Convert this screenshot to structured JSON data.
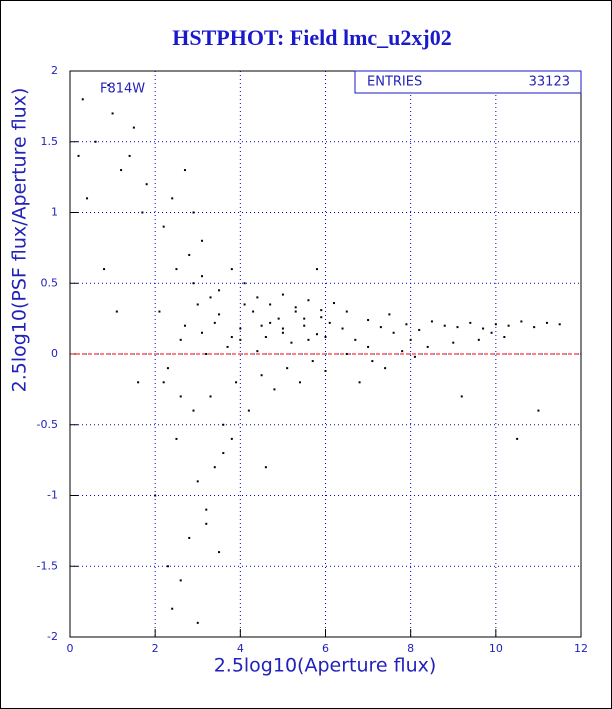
{
  "chart_data": {
    "type": "scatter",
    "title": "HSTPHOT: Field lmc_u2xj02",
    "x_label": "2.5log10(Aperture flux)",
    "y_label": "2.5log10(PSF flux/Aperture flux)",
    "annotation": "F814W",
    "stats": {
      "label": "ENTRIES",
      "value": 33123
    },
    "color": "#000000",
    "grid": true,
    "grid_color": "#0000cc",
    "reference_line": {
      "y": 0,
      "color": "#ff0000"
    },
    "xlim": [
      0,
      12
    ],
    "ylim": [
      -2,
      2
    ],
    "xticks": [
      0,
      2,
      4,
      6,
      8,
      10,
      12
    ],
    "yticks": [
      -2,
      -1.5,
      -1,
      -0.5,
      0,
      0.5,
      1,
      1.5,
      2
    ],
    "x": [
      3.1,
      3.4,
      3.7,
      4.0,
      4.3,
      4.6,
      4.9,
      5.2,
      5.5,
      5.8,
      6.1,
      6.4,
      6.7,
      7.0,
      7.3,
      7.6,
      7.9,
      8.2,
      8.5,
      8.8,
      9.1,
      9.4,
      9.7,
      10.0,
      10.3,
      10.6,
      10.9,
      11.2,
      11.5,
      9.9,
      2.2,
      2.5,
      2.8,
      3.0,
      2.4,
      2.6,
      3.2,
      2.9,
      2.3,
      2.7,
      0.3,
      0.6,
      0.9,
      1.2,
      1.5,
      1.8,
      0.4,
      1.0,
      1.4,
      1.7,
      3.3,
      3.6,
      3.9,
      4.2,
      4.5,
      4.8,
      5.1,
      5.4,
      5.7,
      6.0,
      3.5,
      3.8,
      4.1,
      4.4,
      4.7,
      5.0,
      5.3,
      5.6,
      5.9,
      6.2,
      2.6,
      3.0,
      3.4,
      2.8,
      3.2,
      3.6,
      2.4,
      3.8,
      3.1,
      2.9,
      6.5,
      7.1,
      7.8,
      8.4,
      9.0,
      9.6,
      10.2,
      6.8,
      7.4,
      8.1,
      4.0,
      4.5,
      5.0,
      5.5,
      6.0,
      6.5,
      7.0,
      7.5,
      8.0,
      11.0,
      3.2,
      3.5,
      3.8,
      4.1,
      4.4,
      4.7,
      5.0,
      5.3,
      5.6,
      5.9,
      2.1,
      2.3,
      2.5,
      2.7,
      2.9,
      3.1,
      3.3,
      2.2,
      2.6,
      3.0,
      0.8,
      1.1,
      1.6,
      2.0,
      3.5,
      4.6,
      5.8,
      9.2,
      10.5,
      0.2
    ],
    "values": [
      0.15,
      0.22,
      0.05,
      0.18,
      0.3,
      0.12,
      0.25,
      0.08,
      0.2,
      0.14,
      0.22,
      0.18,
      0.1,
      0.24,
      0.19,
      0.15,
      0.21,
      0.17,
      0.23,
      0.2,
      0.19,
      0.22,
      0.18,
      0.21,
      0.2,
      0.23,
      0.19,
      0.22,
      0.21,
      0.15,
      0.9,
      -0.6,
      0.7,
      -0.9,
      1.1,
      -0.3,
      -1.2,
      0.5,
      -1.5,
      1.3,
      1.8,
      1.5,
      1.9,
      1.3,
      1.6,
      1.2,
      1.1,
      1.7,
      1.4,
      1.0,
      -0.3,
      -0.5,
      -0.2,
      -0.4,
      -0.15,
      -0.25,
      -0.1,
      -0.2,
      -0.05,
      -0.12,
      0.45,
      0.6,
      0.5,
      0.4,
      0.35,
      0.42,
      0.33,
      0.38,
      0.31,
      0.36,
      -1.6,
      -1.9,
      -0.8,
      -1.3,
      -1.1,
      -0.7,
      -1.8,
      -0.6,
      0.8,
      1.0,
      0.0,
      -0.05,
      0.02,
      0.05,
      0.08,
      0.1,
      0.12,
      -0.2,
      -0.1,
      -0.02,
      0.1,
      0.2,
      0.15,
      0.25,
      0.12,
      0.3,
      0.05,
      0.28,
      0.1,
      -0.4,
      0.0,
      0.28,
      0.12,
      0.35,
      0.02,
      0.22,
      0.18,
      0.3,
      0.1,
      0.26,
      0.3,
      -0.1,
      0.6,
      0.2,
      -0.4,
      0.55,
      0.4,
      -0.2,
      0.1,
      0.35,
      0.6,
      0.3,
      -0.2,
      -1.0,
      -1.4,
      -0.8,
      0.6,
      -0.3,
      -0.6,
      1.4
    ]
  }
}
